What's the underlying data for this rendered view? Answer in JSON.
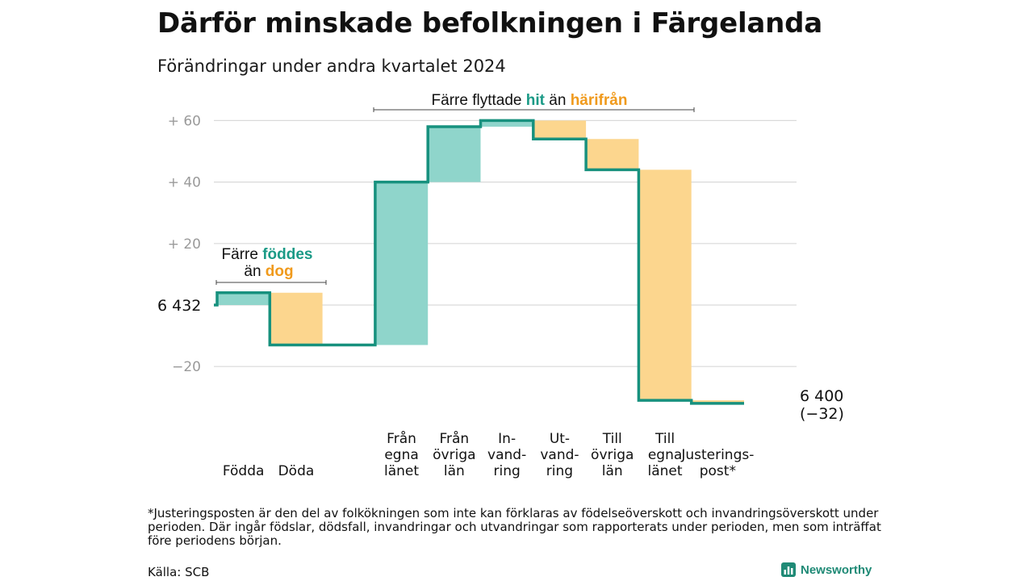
{
  "title": "Därför minskade befolkningen i Färgelanda",
  "subtitle": "Förändringar under andra kvartalet 2024",
  "colors": {
    "inflow": "#8fd5cb",
    "outflow": "#fcd68e",
    "line": "#17917e",
    "teal_text": "#1a9a86",
    "orange_text": "#f09a1c",
    "grid": "#d9d9d9",
    "tick": "#9a9a9a"
  },
  "annotations": {
    "births": {
      "line1": "Färre ",
      "line1_highlight": "föddes",
      "line2": "än ",
      "line2_highlight": "dog"
    },
    "migration": {
      "text1": "Färre flyttade ",
      "highlight1": "hit",
      "text2": " än ",
      "highlight2": "härifrån"
    }
  },
  "chart_data": {
    "type": "waterfall",
    "start_label": "6 432",
    "end_label": "6 400",
    "end_change": "(−32)",
    "start_value": 6432,
    "end_value": 6400,
    "y_ticks": [
      {
        "value": 60,
        "label": "+  60"
      },
      {
        "value": 40,
        "label": "+  40"
      },
      {
        "value": 20,
        "label": "+  20"
      },
      {
        "value": 0,
        "label": ""
      },
      {
        "value": -20,
        "label": "−20"
      }
    ],
    "ylim": [
      -34,
      64
    ],
    "grid": true,
    "steps": [
      {
        "category": "Födda",
        "label_lines": [
          "Födda"
        ],
        "change": 4,
        "kind": "inflow"
      },
      {
        "category": "Döda",
        "label_lines": [
          "Döda"
        ],
        "change": -17,
        "kind": "outflow"
      },
      {
        "category": "",
        "label_lines": [],
        "change": 0,
        "kind": "gap"
      },
      {
        "category": "Från egna länet",
        "label_lines": [
          "Från",
          "egna",
          "länet"
        ],
        "change": 53,
        "kind": "inflow"
      },
      {
        "category": "Från övriga län",
        "label_lines": [
          "Från",
          "övriga",
          "län"
        ],
        "change": 18,
        "kind": "inflow"
      },
      {
        "category": "Invandring",
        "label_lines": [
          "In-",
          "vand-",
          "ring"
        ],
        "change": 2,
        "kind": "inflow"
      },
      {
        "category": "Utvandring",
        "label_lines": [
          "Ut-",
          "vand-",
          "ring"
        ],
        "change": -6,
        "kind": "outflow"
      },
      {
        "category": "Till övriga län",
        "label_lines": [
          "Till",
          "övriga",
          "län"
        ],
        "change": -10,
        "kind": "outflow"
      },
      {
        "category": "Till egna länet",
        "label_lines": [
          "Till",
          "egna",
          "länet"
        ],
        "change": -75,
        "kind": "outflow"
      },
      {
        "category": "Justeringspost*",
        "label_lines": [
          "Justerings-",
          "post*"
        ],
        "change": -1,
        "kind": "outflow"
      }
    ]
  },
  "footnote": "*Justeringsposten är den del av folkökningen som inte kan förklaras av födelseöverskott och invandringsöverskott under perioden. Där ingår födslar, dödsfall, invandringar och utvandringar som rapporterats under perioden, men som inträffat före periodens början.",
  "source": "Källa: SCB",
  "brand": {
    "name": "Newsworthy",
    "logo_icon": "bar-chart-icon"
  }
}
